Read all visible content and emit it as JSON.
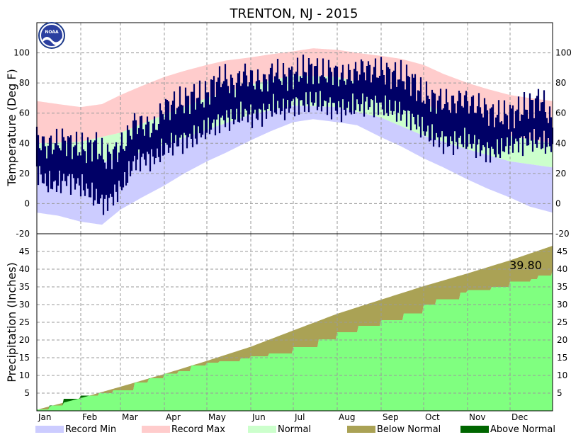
{
  "colors": {
    "record_min": "#ccccff",
    "record_max": "#ffcccc",
    "normal": "#ccffcc",
    "observed": "#000066",
    "below_normal": "#aaa255",
    "above_normal": "#006600",
    "precip_observed": "#80ff80"
  },
  "chart_data": [
    {
      "type": "area",
      "title": "TRENTON, NJ - 2015",
      "ylabel": "Temperature (Deg F)",
      "ylim": [
        -20,
        120
      ],
      "yticks": [
        -20,
        0,
        20,
        40,
        60,
        80,
        100
      ],
      "grid": true,
      "x_unit": "day of year 2015",
      "xlim": [
        1,
        365
      ],
      "series": [
        {
          "name": "Record Max",
          "x": [
            1,
            16,
            32,
            47,
            60,
            75,
            91,
            105,
            121,
            135,
            152,
            166,
            182,
            196,
            213,
            227,
            244,
            258,
            274,
            288,
            305,
            319,
            335,
            349,
            365
          ],
          "values": [
            68,
            66,
            64,
            66,
            72,
            78,
            84,
            88,
            92,
            95,
            97,
            99,
            101,
            103,
            102,
            100,
            98,
            96,
            92,
            86,
            80,
            76,
            72,
            70,
            68
          ]
        },
        {
          "name": "Normal High",
          "x": [
            1,
            32,
            60,
            91,
            121,
            152,
            182,
            213,
            244,
            274,
            305,
            335,
            365
          ],
          "values": [
            40,
            41,
            47,
            59,
            70,
            79,
            85,
            84,
            77,
            66,
            55,
            45,
            40
          ]
        },
        {
          "name": "Normal Low",
          "x": [
            1,
            32,
            60,
            91,
            121,
            152,
            182,
            213,
            244,
            274,
            305,
            335,
            365
          ],
          "values": [
            24,
            24,
            30,
            39,
            49,
            59,
            65,
            64,
            57,
            45,
            36,
            28,
            24
          ]
        },
        {
          "name": "Record Min",
          "x": [
            1,
            16,
            32,
            47,
            60,
            75,
            91,
            105,
            121,
            135,
            152,
            166,
            182,
            196,
            213,
            227,
            244,
            258,
            274,
            288,
            305,
            319,
            335,
            349,
            365
          ],
          "values": [
            -6,
            -8,
            -12,
            -14,
            -4,
            4,
            12,
            20,
            28,
            34,
            42,
            48,
            54,
            56,
            54,
            52,
            44,
            38,
            30,
            24,
            16,
            10,
            4,
            -2,
            -6
          ]
        },
        {
          "name": "Observed High",
          "x": [
            1,
            7,
            14,
            21,
            28,
            35,
            42,
            49,
            56,
            63,
            70,
            77,
            84,
            91,
            98,
            105,
            112,
            119,
            126,
            133,
            140,
            147,
            154,
            161,
            168,
            175,
            182,
            189,
            196,
            203,
            210,
            217,
            224,
            231,
            238,
            245,
            252,
            259,
            266,
            273,
            280,
            287,
            294,
            301,
            308,
            315,
            322,
            329,
            336,
            343,
            350,
            357,
            365
          ],
          "values": [
            44,
            38,
            40,
            42,
            38,
            36,
            40,
            30,
            34,
            40,
            54,
            52,
            50,
            64,
            66,
            68,
            72,
            70,
            80,
            84,
            78,
            86,
            82,
            80,
            88,
            84,
            86,
            88,
            90,
            86,
            88,
            84,
            86,
            90,
            88,
            88,
            86,
            84,
            82,
            72,
            70,
            68,
            66,
            70,
            66,
            64,
            60,
            58,
            60,
            62,
            66,
            70,
            52
          ]
        },
        {
          "name": "Observed Low",
          "x": [
            1,
            7,
            14,
            21,
            28,
            35,
            42,
            49,
            56,
            63,
            70,
            77,
            84,
            91,
            98,
            105,
            112,
            119,
            126,
            133,
            140,
            147,
            154,
            161,
            168,
            175,
            182,
            189,
            196,
            203,
            210,
            217,
            224,
            231,
            238,
            245,
            252,
            259,
            266,
            273,
            280,
            287,
            294,
            301,
            308,
            315,
            322,
            329,
            336,
            343,
            350,
            357,
            365
          ],
          "values": [
            22,
            14,
            12,
            16,
            14,
            10,
            4,
            0,
            6,
            14,
            28,
            30,
            30,
            36,
            40,
            42,
            44,
            48,
            52,
            56,
            56,
            60,
            58,
            60,
            64,
            62,
            66,
            66,
            68,
            66,
            64,
            62,
            64,
            66,
            66,
            64,
            62,
            60,
            56,
            50,
            44,
            42,
            40,
            42,
            40,
            36,
            34,
            36,
            40,
            40,
            42,
            40,
            38
          ]
        }
      ]
    },
    {
      "type": "area",
      "ylabel": "Precipitation (Inches)",
      "ylim": [
        0,
        50
      ],
      "yticks": [
        5,
        10,
        15,
        20,
        25,
        30,
        35,
        40,
        45
      ],
      "xlabels": [
        "Jan",
        "Feb",
        "Mar",
        "Apr",
        "May",
        "Jun",
        "Jul",
        "Aug",
        "Sep",
        "Oct",
        "Nov",
        "Dec"
      ],
      "grid": true,
      "annotation": "39.80",
      "x_unit": "day of year 2015",
      "xlim": [
        1,
        365
      ],
      "series": [
        {
          "name": "Normal Cumulative",
          "x": [
            1,
            32,
            60,
            91,
            121,
            152,
            182,
            213,
            244,
            274,
            305,
            335,
            365
          ],
          "values": [
            0.3,
            3.6,
            6.8,
            10.4,
            14.1,
            18.1,
            22.7,
            27.4,
            31.4,
            35.2,
            38.8,
            42.5,
            46.6
          ]
        },
        {
          "name": "Observed Cumulative",
          "x": [
            1,
            10,
            20,
            32,
            45,
            55,
            70,
            80,
            91,
            101,
            110,
            121,
            130,
            145,
            152,
            165,
            182,
            200,
            213,
            228,
            244,
            260,
            274,
            283,
            300,
            305,
            322,
            335,
            350,
            355,
            365
          ],
          "values": [
            0.4,
            1.5,
            3.4,
            4.3,
            5.0,
            5.8,
            8.0,
            9.2,
            10.5,
            11.2,
            12.8,
            13.6,
            14.0,
            14.8,
            15.4,
            16.2,
            18.0,
            20.2,
            22.2,
            24.0,
            25.6,
            27.5,
            30.0,
            31.5,
            33.4,
            34.1,
            35.0,
            36.5,
            37.2,
            38.2,
            39.8
          ]
        }
      ]
    }
  ],
  "legend": {
    "items": [
      {
        "label": "Record Min",
        "color": "#ccccff"
      },
      {
        "label": "Record Max",
        "color": "#ffcccc"
      },
      {
        "label": "Normal",
        "color": "#ccffcc"
      },
      {
        "label": "Below Normal",
        "color": "#aaa255"
      },
      {
        "label": "Above Normal",
        "color": "#006600"
      }
    ]
  },
  "logo": {
    "name": "noaa-logo-icon",
    "text": "NOAA"
  }
}
